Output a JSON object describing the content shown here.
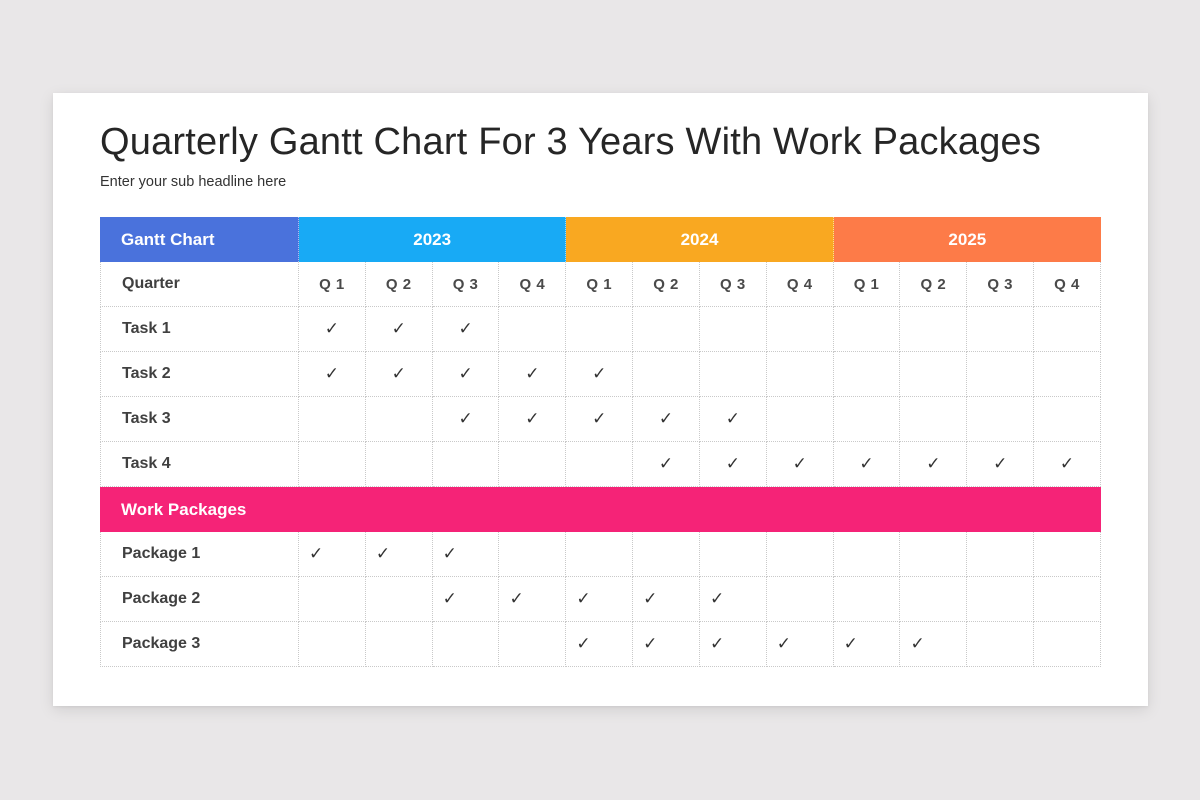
{
  "header": {
    "title": "Quarterly Gantt Chart For 3 Years With Work Packages",
    "subtitle": "Enter your sub headline here"
  },
  "colors": {
    "gantt_chart_header": "#4a72dc",
    "year_2023": "#18aaf5",
    "year_2024": "#f9a821",
    "year_2025": "#fd7b48",
    "work_packages_bar": "#f52377",
    "background": "#e9e7e8",
    "card": "#ffffff"
  },
  "table": {
    "corner_label": "Gantt Chart",
    "years": [
      "2023",
      "2024",
      "2025"
    ],
    "quarter_row_label": "Quarter",
    "quarters": [
      "Q 1",
      "Q 2",
      "Q 3",
      "Q 4",
      "Q 1",
      "Q 2",
      "Q 3",
      "Q 4",
      "Q 1",
      "Q 2",
      "Q 3",
      "Q 4"
    ],
    "check_glyph": "✓",
    "tasks": [
      {
        "label": "Task 1",
        "cells": [
          "✓",
          "✓",
          "✓",
          "",
          "",
          "",
          "",
          "",
          "",
          "",
          "",
          ""
        ]
      },
      {
        "label": "Task 2",
        "cells": [
          "✓",
          "✓",
          "✓",
          "✓",
          "✓",
          "",
          "",
          "",
          "",
          "",
          "",
          ""
        ]
      },
      {
        "label": "Task 3",
        "cells": [
          "",
          "",
          "✓",
          "✓",
          "✓",
          "✓",
          "✓",
          "",
          "",
          "",
          "",
          ""
        ]
      },
      {
        "label": "Task 4",
        "cells": [
          "",
          "",
          "",
          "",
          "",
          "✓",
          "✓",
          "✓",
          "✓",
          "✓",
          "✓",
          "✓"
        ]
      }
    ],
    "section_label": "Work Packages",
    "packages": [
      {
        "label": "Package 1",
        "cells": [
          "✓",
          "✓",
          "✓",
          "",
          "",
          "",
          "",
          "",
          "",
          "",
          "",
          ""
        ]
      },
      {
        "label": "Package 2",
        "cells": [
          "",
          "",
          "✓",
          "✓",
          "✓",
          "✓",
          "✓",
          "",
          "",
          "",
          "",
          ""
        ]
      },
      {
        "label": "Package 3",
        "cells": [
          "",
          "",
          "",
          "",
          "✓",
          "✓",
          "✓",
          "✓",
          "✓",
          "✓",
          "",
          ""
        ]
      }
    ]
  },
  "chart_data": {
    "type": "table",
    "title": "Quarterly Gantt Chart For 3 Years With Work Packages",
    "subtitle": "Enter your sub headline here",
    "years": [
      "2023",
      "2024",
      "2025"
    ],
    "categories": [
      "2023 Q1",
      "2023 Q2",
      "2023 Q3",
      "2023 Q4",
      "2024 Q1",
      "2024 Q2",
      "2024 Q3",
      "2024 Q4",
      "2025 Q1",
      "2025 Q2",
      "2025 Q3",
      "2025 Q4"
    ],
    "series": [
      {
        "name": "Task 1",
        "group": "Gantt Chart",
        "values": [
          1,
          1,
          1,
          0,
          0,
          0,
          0,
          0,
          0,
          0,
          0,
          0
        ]
      },
      {
        "name": "Task 2",
        "group": "Gantt Chart",
        "values": [
          1,
          1,
          1,
          1,
          1,
          0,
          0,
          0,
          0,
          0,
          0,
          0
        ]
      },
      {
        "name": "Task 3",
        "group": "Gantt Chart",
        "values": [
          0,
          0,
          1,
          1,
          1,
          1,
          1,
          0,
          0,
          0,
          0,
          0
        ]
      },
      {
        "name": "Task 4",
        "group": "Gantt Chart",
        "values": [
          0,
          0,
          0,
          0,
          0,
          1,
          1,
          1,
          1,
          1,
          1,
          1
        ]
      },
      {
        "name": "Package 1",
        "group": "Work Packages",
        "values": [
          1,
          1,
          1,
          0,
          0,
          0,
          0,
          0,
          0,
          0,
          0,
          0
        ]
      },
      {
        "name": "Package 2",
        "group": "Work Packages",
        "values": [
          0,
          0,
          1,
          1,
          1,
          1,
          1,
          0,
          0,
          0,
          0,
          0
        ]
      },
      {
        "name": "Package 3",
        "group": "Work Packages",
        "values": [
          0,
          0,
          0,
          0,
          1,
          1,
          1,
          1,
          1,
          1,
          0,
          0
        ]
      }
    ],
    "legend": [],
    "grid": true
  }
}
